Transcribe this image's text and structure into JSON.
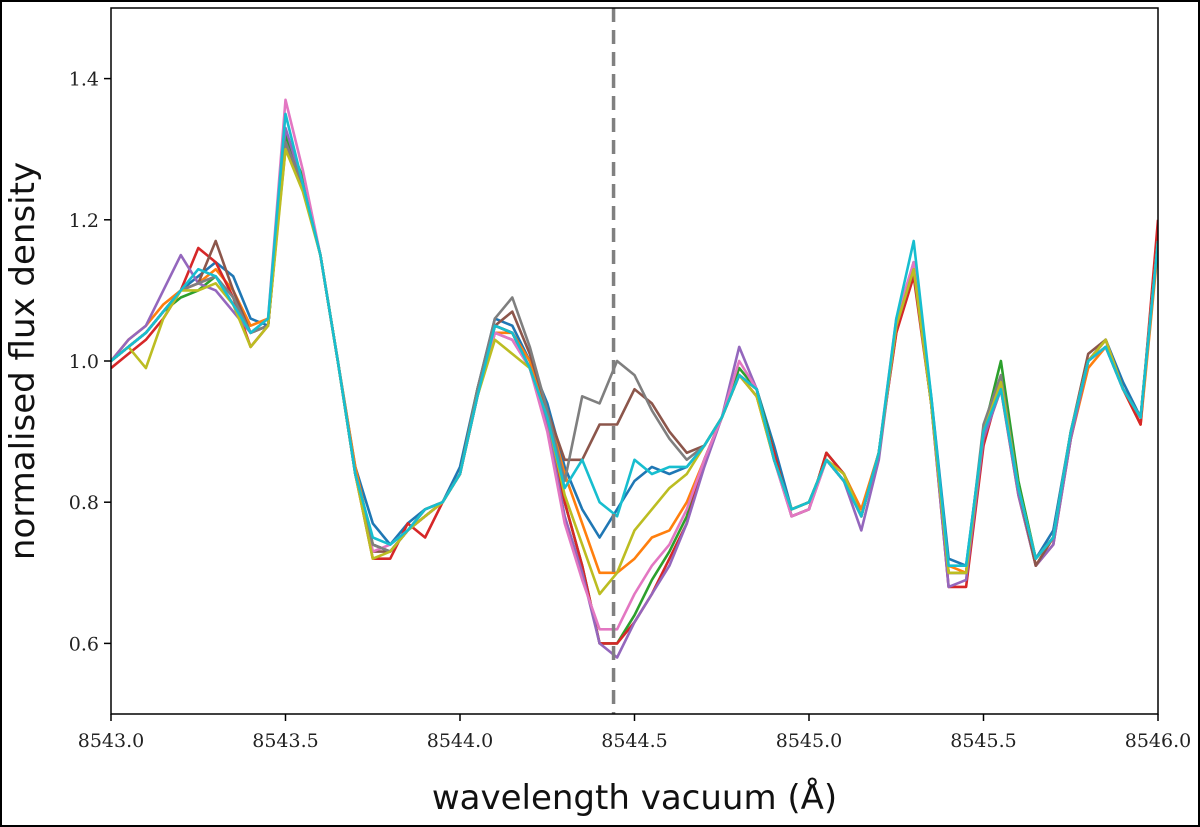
{
  "chart_data": {
    "type": "line",
    "title": "",
    "xlabel": "wavelength vacuum (Å)",
    "ylabel": "normalised flux density",
    "xlim": [
      8543.0,
      8546.0
    ],
    "ylim": [
      0.5,
      1.5
    ],
    "xticks": [
      8543.0,
      8543.5,
      8544.0,
      8544.5,
      8545.0,
      8545.5,
      8546.0
    ],
    "xtick_labels": [
      "8543.0",
      "8543.5",
      "8544.0",
      "8544.5",
      "8545.0",
      "8545.5",
      "8546.0"
    ],
    "yticks": [
      0.6,
      0.8,
      1.0,
      1.2,
      1.4
    ],
    "ytick_labels": [
      "0.6",
      "0.8",
      "1.0",
      "1.2",
      "1.4"
    ],
    "grid": false,
    "legend": "none",
    "vline": {
      "x": 8544.44,
      "style": "dashed",
      "color": "#808080"
    },
    "x": [
      8543.0,
      8543.05,
      8543.1,
      8543.15,
      8543.2,
      8543.25,
      8543.3,
      8543.35,
      8543.4,
      8543.45,
      8543.5,
      8543.55,
      8543.6,
      8543.65,
      8543.7,
      8543.75,
      8543.8,
      8543.85,
      8543.9,
      8543.95,
      8544.0,
      8544.05,
      8544.1,
      8544.15,
      8544.2,
      8544.25,
      8544.3,
      8544.35,
      8544.4,
      8544.45,
      8544.5,
      8544.55,
      8544.6,
      8544.65,
      8544.7,
      8544.75,
      8544.8,
      8544.85,
      8544.9,
      8544.95,
      8545.0,
      8545.05,
      8545.1,
      8545.15,
      8545.2,
      8545.25,
      8545.3,
      8545.35,
      8545.4,
      8545.45,
      8545.5,
      8545.55,
      8545.6,
      8545.65,
      8545.7,
      8545.75,
      8545.8,
      8545.85,
      8545.9,
      8545.95,
      8546.0
    ],
    "series": [
      {
        "color": "#1f77b4",
        "values": [
          1.0,
          1.02,
          1.04,
          1.07,
          1.1,
          1.12,
          1.14,
          1.12,
          1.06,
          1.05,
          1.32,
          1.25,
          1.15,
          1.0,
          0.85,
          0.77,
          0.74,
          0.77,
          0.79,
          0.8,
          0.85,
          0.96,
          1.06,
          1.05,
          1.0,
          0.94,
          0.85,
          0.79,
          0.75,
          0.79,
          0.83,
          0.85,
          0.84,
          0.85,
          0.88,
          0.92,
          0.98,
          0.96,
          0.88,
          0.79,
          0.8,
          0.86,
          0.83,
          0.78,
          0.87,
          1.05,
          1.14,
          0.95,
          0.72,
          0.71,
          0.9,
          0.97,
          0.82,
          0.72,
          0.76,
          0.9,
          1.0,
          1.03,
          0.97,
          0.92,
          1.18
        ]
      },
      {
        "color": "#ff7f0e",
        "values": [
          1.0,
          1.03,
          1.05,
          1.08,
          1.1,
          1.11,
          1.13,
          1.1,
          1.05,
          1.06,
          1.3,
          1.25,
          1.15,
          1.0,
          0.85,
          0.74,
          0.73,
          0.76,
          0.79,
          0.8,
          0.84,
          0.95,
          1.04,
          1.04,
          1.0,
          0.93,
          0.84,
          0.77,
          0.7,
          0.7,
          0.72,
          0.75,
          0.76,
          0.8,
          0.86,
          0.92,
          0.98,
          0.95,
          0.86,
          0.79,
          0.8,
          0.86,
          0.84,
          0.79,
          0.87,
          1.04,
          1.13,
          0.94,
          0.71,
          0.7,
          0.89,
          0.96,
          0.81,
          0.71,
          0.75,
          0.89,
          0.99,
          1.02,
          0.96,
          0.91,
          1.16
        ]
      },
      {
        "color": "#2ca02c",
        "values": [
          1.0,
          1.02,
          1.04,
          1.07,
          1.09,
          1.1,
          1.12,
          1.08,
          1.04,
          1.05,
          1.32,
          1.26,
          1.15,
          1.0,
          0.84,
          0.74,
          0.73,
          0.76,
          0.78,
          0.8,
          0.84,
          0.96,
          1.05,
          1.04,
          0.99,
          0.91,
          0.8,
          0.71,
          0.6,
          0.6,
          0.64,
          0.69,
          0.73,
          0.78,
          0.86,
          0.92,
          0.99,
          0.96,
          0.87,
          0.78,
          0.79,
          0.87,
          0.84,
          0.78,
          0.87,
          1.05,
          1.13,
          0.94,
          0.7,
          0.7,
          0.9,
          1.0,
          0.83,
          0.72,
          0.75,
          0.9,
          1.0,
          1.02,
          0.96,
          0.92,
          1.17
        ]
      },
      {
        "color": "#d62728",
        "values": [
          0.99,
          1.01,
          1.03,
          1.06,
          1.1,
          1.16,
          1.14,
          1.09,
          1.02,
          1.05,
          1.31,
          1.25,
          1.15,
          1.0,
          0.84,
          0.72,
          0.72,
          0.77,
          0.75,
          0.8,
          0.84,
          0.95,
          1.05,
          1.04,
          0.99,
          0.92,
          0.8,
          0.71,
          0.6,
          0.6,
          0.63,
          0.67,
          0.72,
          0.77,
          0.86,
          0.92,
          0.98,
          0.95,
          0.87,
          0.78,
          0.79,
          0.87,
          0.84,
          0.78,
          0.87,
          1.04,
          1.12,
          0.94,
          0.68,
          0.68,
          0.88,
          0.97,
          0.82,
          0.71,
          0.74,
          0.89,
          1.0,
          1.03,
          0.96,
          0.91,
          1.2
        ]
      },
      {
        "color": "#9467bd",
        "values": [
          1.0,
          1.03,
          1.05,
          1.1,
          1.15,
          1.11,
          1.1,
          1.07,
          1.04,
          1.05,
          1.33,
          1.25,
          1.15,
          1.0,
          0.84,
          0.74,
          0.73,
          0.76,
          0.78,
          0.8,
          0.84,
          0.95,
          1.04,
          1.03,
          0.99,
          0.91,
          0.78,
          0.7,
          0.6,
          0.58,
          0.63,
          0.67,
          0.71,
          0.77,
          0.85,
          0.92,
          1.02,
          0.96,
          0.86,
          0.78,
          0.79,
          0.86,
          0.83,
          0.76,
          0.86,
          1.05,
          1.14,
          0.94,
          0.68,
          0.69,
          0.89,
          0.96,
          0.81,
          0.71,
          0.74,
          0.89,
          1.0,
          1.02,
          0.96,
          0.92,
          1.17
        ]
      },
      {
        "color": "#8c564b",
        "values": [
          1.0,
          1.02,
          1.04,
          1.07,
          1.1,
          1.11,
          1.17,
          1.1,
          1.04,
          1.05,
          1.31,
          1.25,
          1.15,
          1.0,
          0.84,
          0.73,
          0.73,
          0.76,
          0.78,
          0.8,
          0.84,
          0.95,
          1.05,
          1.07,
          1.01,
          0.93,
          0.86,
          0.86,
          0.91,
          0.91,
          0.96,
          0.94,
          0.9,
          0.87,
          0.88,
          0.92,
          0.98,
          0.96,
          0.86,
          0.79,
          0.8,
          0.86,
          0.83,
          0.78,
          0.87,
          1.05,
          1.13,
          0.94,
          0.7,
          0.7,
          0.9,
          0.97,
          0.82,
          0.71,
          0.75,
          0.9,
          1.01,
          1.03,
          0.96,
          0.92,
          1.17
        ]
      },
      {
        "color": "#e377c2",
        "values": [
          1.0,
          1.02,
          1.04,
          1.07,
          1.1,
          1.11,
          1.12,
          1.08,
          1.04,
          1.06,
          1.37,
          1.27,
          1.15,
          1.0,
          0.84,
          0.73,
          0.74,
          0.76,
          0.78,
          0.8,
          0.84,
          0.95,
          1.04,
          1.03,
          0.99,
          0.9,
          0.77,
          0.69,
          0.62,
          0.62,
          0.67,
          0.71,
          0.74,
          0.79,
          0.86,
          0.92,
          1.0,
          0.96,
          0.86,
          0.78,
          0.79,
          0.86,
          0.83,
          0.78,
          0.87,
          1.06,
          1.14,
          0.94,
          0.7,
          0.7,
          0.9,
          0.97,
          0.82,
          0.72,
          0.75,
          0.9,
          1.0,
          1.02,
          0.96,
          0.92,
          1.17
        ]
      },
      {
        "color": "#7f7f7f",
        "values": [
          1.0,
          1.02,
          1.04,
          1.07,
          1.1,
          1.11,
          1.12,
          1.09,
          1.04,
          1.05,
          1.31,
          1.25,
          1.15,
          1.0,
          0.84,
          0.74,
          0.73,
          0.76,
          0.79,
          0.8,
          0.84,
          0.96,
          1.06,
          1.09,
          1.02,
          0.93,
          0.83,
          0.95,
          0.94,
          1.0,
          0.98,
          0.93,
          0.89,
          0.86,
          0.88,
          0.92,
          0.98,
          0.96,
          0.86,
          0.79,
          0.8,
          0.86,
          0.83,
          0.78,
          0.87,
          1.05,
          1.13,
          0.94,
          0.7,
          0.7,
          0.91,
          0.98,
          0.82,
          0.72,
          0.75,
          0.9,
          1.0,
          1.03,
          0.96,
          0.92,
          1.17
        ]
      },
      {
        "color": "#bcbd22",
        "values": [
          1.0,
          1.02,
          0.99,
          1.06,
          1.1,
          1.1,
          1.11,
          1.08,
          1.02,
          1.05,
          1.3,
          1.24,
          1.15,
          1.0,
          0.84,
          0.72,
          0.73,
          0.76,
          0.78,
          0.8,
          0.84,
          0.95,
          1.03,
          1.01,
          0.99,
          0.92,
          0.81,
          0.74,
          0.67,
          0.7,
          0.76,
          0.79,
          0.82,
          0.84,
          0.88,
          0.92,
          0.98,
          0.95,
          0.86,
          0.79,
          0.8,
          0.86,
          0.84,
          0.78,
          0.87,
          1.05,
          1.13,
          0.94,
          0.7,
          0.7,
          0.9,
          0.97,
          0.82,
          0.72,
          0.75,
          0.9,
          1.0,
          1.03,
          0.96,
          0.92,
          1.17
        ]
      },
      {
        "color": "#17becf",
        "values": [
          1.0,
          1.02,
          1.04,
          1.07,
          1.1,
          1.13,
          1.12,
          1.08,
          1.04,
          1.06,
          1.35,
          1.25,
          1.15,
          1.0,
          0.84,
          0.75,
          0.74,
          0.76,
          0.79,
          0.8,
          0.84,
          0.95,
          1.05,
          1.04,
          0.99,
          0.92,
          0.82,
          0.86,
          0.8,
          0.78,
          0.86,
          0.84,
          0.85,
          0.85,
          0.88,
          0.92,
          0.98,
          0.96,
          0.86,
          0.79,
          0.8,
          0.86,
          0.83,
          0.78,
          0.87,
          1.06,
          1.17,
          0.95,
          0.71,
          0.71,
          0.9,
          0.96,
          0.82,
          0.72,
          0.75,
          0.9,
          1.0,
          1.02,
          0.96,
          0.92,
          1.17
        ]
      }
    ]
  }
}
